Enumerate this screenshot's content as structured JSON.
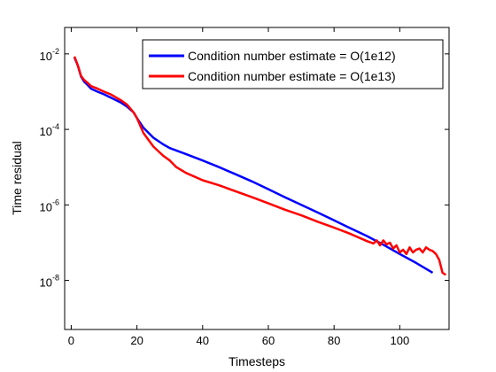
{
  "chart_data": {
    "type": "line",
    "title": "",
    "xlabel": "Timesteps",
    "ylabel": "Time residual",
    "xlim": [
      -2,
      115
    ],
    "ylim_log10": [
      -9.3,
      -7.3
    ],
    "y_scale": "log",
    "grid": false,
    "legend_position": "top-right",
    "x_ticks": [
      0,
      20,
      40,
      60,
      80,
      100
    ],
    "y_ticks": [
      {
        "value": 1e-08,
        "base": "10",
        "exponent": "-8"
      },
      {
        "value": 1e-06,
        "base": "10",
        "exponent": "-6"
      },
      {
        "value": 0.0001,
        "base": "10",
        "exponent": "-4"
      },
      {
        "value": 0.01,
        "base": "10",
        "exponent": "-2"
      }
    ],
    "series": [
      {
        "name": "Condition number estimate = O(1e12)",
        "color": "#0000ff",
        "points": [
          [
            1,
            0.008
          ],
          [
            2,
            0.005
          ],
          [
            3,
            0.0025
          ],
          [
            4,
            0.0018
          ],
          [
            5,
            0.0015
          ],
          [
            6,
            0.0012
          ],
          [
            8,
            0.001
          ],
          [
            10,
            0.00085
          ],
          [
            12,
            0.0007
          ],
          [
            15,
            0.00052
          ],
          [
            17,
            0.0004
          ],
          [
            19,
            0.00028
          ],
          [
            20,
            0.0002
          ],
          [
            22,
            0.00011
          ],
          [
            25,
            6e-05
          ],
          [
            28,
            4e-05
          ],
          [
            30,
            3.2e-05
          ],
          [
            35,
            2.2e-05
          ],
          [
            40,
            1.5e-05
          ],
          [
            45,
            1e-05
          ],
          [
            50,
            6.5e-06
          ],
          [
            55,
            4.2e-06
          ],
          [
            60,
            2.6e-06
          ],
          [
            65,
            1.6e-06
          ],
          [
            70,
            1e-06
          ],
          [
            75,
            6.3e-07
          ],
          [
            80,
            3.9e-07
          ],
          [
            85,
            2.4e-07
          ],
          [
            90,
            1.5e-07
          ],
          [
            95,
            8.8e-08
          ],
          [
            100,
            5e-08
          ],
          [
            105,
            2.9e-08
          ],
          [
            110,
            1.6e-08
          ]
        ]
      },
      {
        "name": "Condition number estimate = O(1e13)",
        "color": "#ff0000",
        "points": [
          [
            1,
            0.0085
          ],
          [
            2,
            0.005
          ],
          [
            3,
            0.0026
          ],
          [
            4,
            0.002
          ],
          [
            5,
            0.0017
          ],
          [
            6,
            0.0014
          ],
          [
            8,
            0.0012
          ],
          [
            10,
            0.001
          ],
          [
            12,
            0.00085
          ],
          [
            15,
            0.0006
          ],
          [
            17,
            0.00045
          ],
          [
            19,
            0.00028
          ],
          [
            20,
            0.0002
          ],
          [
            22,
            8e-05
          ],
          [
            25,
            3.5e-05
          ],
          [
            28,
            2e-05
          ],
          [
            30,
            1.5e-05
          ],
          [
            32,
            1e-05
          ],
          [
            35,
            7e-06
          ],
          [
            40,
            4.5e-06
          ],
          [
            45,
            3.3e-06
          ],
          [
            50,
            2.3e-06
          ],
          [
            55,
            1.6e-06
          ],
          [
            60,
            1.1e-06
          ],
          [
            65,
            7.5e-07
          ],
          [
            70,
            5.3e-07
          ],
          [
            75,
            3.6e-07
          ],
          [
            80,
            2.5e-07
          ],
          [
            85,
            1.7e-07
          ],
          [
            90,
            1.1e-07
          ],
          [
            92,
            9.5e-08
          ],
          [
            93,
            1.15e-07
          ],
          [
            94,
            8.5e-08
          ],
          [
            95,
            1.15e-07
          ],
          [
            96,
            9e-08
          ],
          [
            97,
            1e-07
          ],
          [
            98,
            7e-08
          ],
          [
            99,
            8.5e-08
          ],
          [
            100,
            5.5e-08
          ],
          [
            101,
            6.5e-08
          ],
          [
            102,
            5e-08
          ],
          [
            103,
            7.5e-08
          ],
          [
            104,
            5.5e-08
          ],
          [
            105,
            6.5e-08
          ],
          [
            106,
            7e-08
          ],
          [
            107,
            5.5e-08
          ],
          [
            108,
            7.5e-08
          ],
          [
            109,
            6.5e-08
          ],
          [
            110,
            6e-08
          ],
          [
            111,
            5e-08
          ],
          [
            112,
            3.5e-08
          ],
          [
            113,
            1.6e-08
          ],
          [
            114,
            1.4e-08
          ]
        ]
      }
    ]
  }
}
